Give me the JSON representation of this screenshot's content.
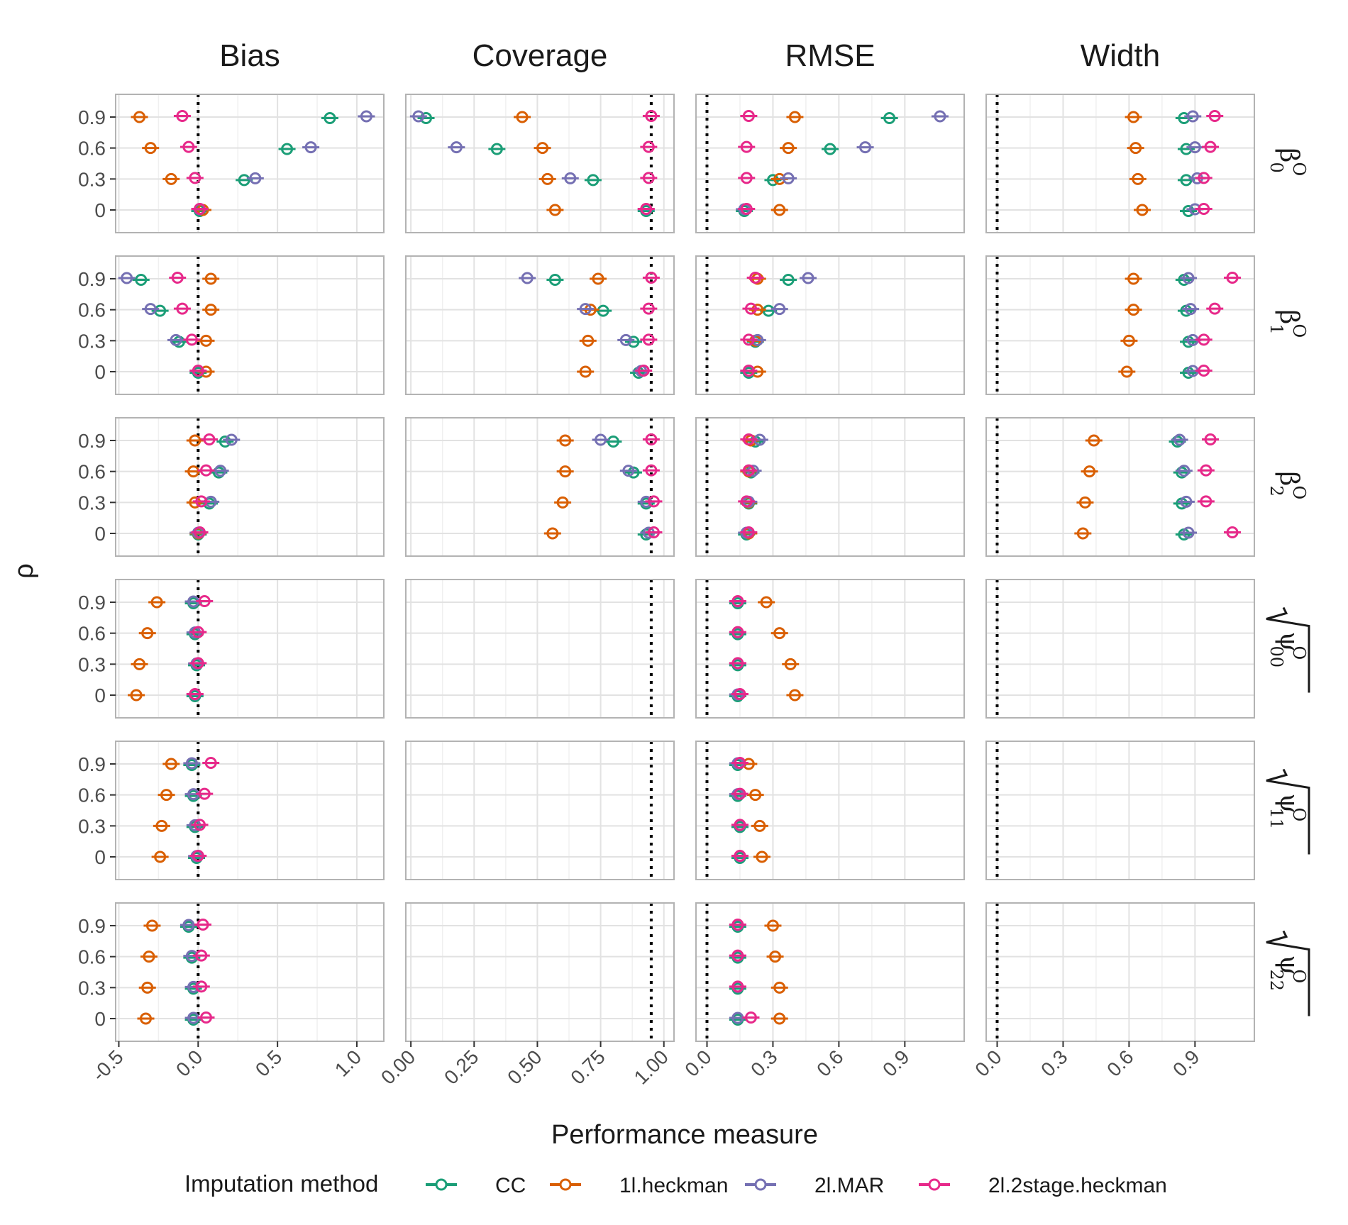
{
  "chart_data": {
    "type": "scatter",
    "title": "",
    "xlabel": "Performance measure",
    "ylabel": "ρ",
    "grid": true,
    "legend_position": "bottom",
    "rho_levels": [
      "0",
      "0.3",
      "0.6",
      "0.9"
    ],
    "columns": [
      {
        "name": "Bias",
        "xlim": [
          -0.52,
          1.17
        ],
        "ticks": [
          -0.5,
          0.0,
          0.5,
          1.0
        ],
        "tick_labels": [
          "-0.5",
          "0.0",
          "0.5",
          "1.0"
        ],
        "reference": 0.0
      },
      {
        "name": "Coverage",
        "xlim": [
          -0.02,
          1.04
        ],
        "ticks": [
          0.0,
          0.25,
          0.5,
          0.75,
          1.0
        ],
        "tick_labels": [
          "0.00",
          "0.25",
          "0.50",
          "0.75",
          "1.00"
        ],
        "reference": 0.95
      },
      {
        "name": "RMSE",
        "xlim": [
          -0.05,
          1.17
        ],
        "ticks": [
          0.0,
          0.3,
          0.6,
          0.9
        ],
        "tick_labels": [
          "0.0",
          "0.3",
          "0.6",
          "0.9"
        ],
        "reference": 0.0
      },
      {
        "name": "Width",
        "xlim": [
          -0.05,
          1.17
        ],
        "ticks": [
          0.0,
          0.3,
          0.6,
          0.9
        ],
        "tick_labels": [
          "0.0",
          "0.3",
          "0.6",
          "0.9"
        ],
        "reference": 0.0
      }
    ],
    "rows": [
      {
        "label": "β",
        "sub": "0",
        "sup": "O",
        "sqrt": false
      },
      {
        "label": "β",
        "sub": "1",
        "sup": "O",
        "sqrt": false
      },
      {
        "label": "β",
        "sub": "2",
        "sup": "O",
        "sqrt": false
      },
      {
        "label": "ψ",
        "sub": "00",
        "sup": "O",
        "sqrt": true
      },
      {
        "label": "ψ",
        "sub": "11",
        "sup": "O",
        "sqrt": true
      },
      {
        "label": "ψ",
        "sub": "22",
        "sup": "O",
        "sqrt": true
      }
    ],
    "legend": {
      "title": "Imputation method",
      "series": [
        {
          "name": "CC",
          "color": "#1b9e77"
        },
        {
          "name": "1l.heckman",
          "color": "#d95f02"
        },
        {
          "name": "2l.MAR",
          "color": "#7570b3"
        },
        {
          "name": "2l.2stage.heckman",
          "color": "#e7298a"
        }
      ]
    },
    "panels": {
      "Bias": [
        {
          "CC": [
            0.01,
            0.29,
            0.56,
            0.83
          ],
          "1l.heckman": [
            0.03,
            -0.17,
            -0.3,
            -0.37
          ],
          "2l.MAR": [
            0.01,
            0.36,
            0.71,
            1.06
          ],
          "2l.2stage.heckman": [
            0.01,
            -0.02,
            -0.06,
            -0.1
          ]
        },
        {
          "CC": [
            0.0,
            -0.12,
            -0.24,
            -0.36
          ],
          "1l.heckman": [
            0.05,
            0.05,
            0.08,
            0.08
          ],
          "2l.MAR": [
            0.0,
            -0.14,
            -0.3,
            -0.45
          ],
          "2l.2stage.heckman": [
            0.0,
            -0.04,
            -0.1,
            -0.13
          ]
        },
        {
          "CC": [
            0.0,
            0.07,
            0.13,
            0.17
          ],
          "1l.heckman": [
            0.0,
            -0.02,
            -0.03,
            -0.02
          ],
          "2l.MAR": [
            0.0,
            0.08,
            0.14,
            0.21
          ],
          "2l.2stage.heckman": [
            0.01,
            0.02,
            0.05,
            0.07
          ]
        },
        {
          "CC": [
            -0.02,
            -0.01,
            -0.02,
            -0.03
          ],
          "1l.heckman": [
            -0.39,
            -0.37,
            -0.32,
            -0.26
          ],
          "2l.MAR": [
            -0.02,
            -0.01,
            -0.02,
            -0.03
          ],
          "2l.2stage.heckman": [
            -0.02,
            0.0,
            0.0,
            0.04
          ]
        },
        {
          "CC": [
            -0.01,
            -0.02,
            -0.03,
            -0.04
          ],
          "1l.heckman": [
            -0.24,
            -0.23,
            -0.2,
            -0.17
          ],
          "2l.MAR": [
            -0.01,
            -0.02,
            -0.03,
            -0.04
          ],
          "2l.2stage.heckman": [
            0.0,
            0.01,
            0.04,
            0.08
          ]
        },
        {
          "CC": [
            -0.03,
            -0.03,
            -0.04,
            -0.06
          ],
          "1l.heckman": [
            -0.33,
            -0.32,
            -0.31,
            -0.29
          ],
          "2l.MAR": [
            -0.03,
            -0.03,
            -0.04,
            -0.06
          ],
          "2l.2stage.heckman": [
            0.05,
            0.02,
            0.02,
            0.03
          ]
        }
      ],
      "Coverage": [
        {
          "CC": [
            0.93,
            0.72,
            0.34,
            0.06
          ],
          "1l.heckman": [
            0.57,
            0.54,
            0.52,
            0.44
          ],
          "2l.MAR": [
            0.93,
            0.63,
            0.18,
            0.03
          ],
          "2l.2stage.heckman": [
            0.93,
            0.94,
            0.94,
            0.95
          ]
        },
        {
          "CC": [
            0.9,
            0.88,
            0.76,
            0.57
          ],
          "1l.heckman": [
            0.69,
            0.7,
            0.71,
            0.74
          ],
          "2l.MAR": [
            0.91,
            0.85,
            0.69,
            0.46
          ],
          "2l.2stage.heckman": [
            0.92,
            0.94,
            0.94,
            0.95
          ]
        },
        {
          "CC": [
            0.93,
            0.93,
            0.88,
            0.8
          ],
          "1l.heckman": [
            0.56,
            0.6,
            0.61,
            0.61
          ],
          "2l.MAR": [
            0.94,
            0.93,
            0.86,
            0.75
          ],
          "2l.2stage.heckman": [
            0.96,
            0.96,
            0.95,
            0.95
          ]
        },
        {},
        {},
        {}
      ],
      "RMSE": [
        {
          "CC": [
            0.17,
            0.3,
            0.56,
            0.83
          ],
          "1l.heckman": [
            0.33,
            0.33,
            0.37,
            0.4
          ],
          "2l.MAR": [
            0.17,
            0.37,
            0.72,
            1.06
          ],
          "2l.2stage.heckman": [
            0.18,
            0.18,
            0.18,
            0.19
          ]
        },
        {
          "CC": [
            0.19,
            0.22,
            0.28,
            0.37
          ],
          "1l.heckman": [
            0.23,
            0.22,
            0.23,
            0.23
          ],
          "2l.MAR": [
            0.19,
            0.23,
            0.33,
            0.46
          ],
          "2l.2stage.heckman": [
            0.19,
            0.19,
            0.2,
            0.22
          ]
        },
        {
          "CC": [
            0.18,
            0.19,
            0.2,
            0.22
          ],
          "1l.heckman": [
            0.19,
            0.19,
            0.19,
            0.2
          ],
          "2l.MAR": [
            0.18,
            0.19,
            0.21,
            0.24
          ],
          "2l.2stage.heckman": [
            0.19,
            0.18,
            0.19,
            0.19
          ]
        },
        {
          "CC": [
            0.14,
            0.14,
            0.14,
            0.14
          ],
          "1l.heckman": [
            0.4,
            0.38,
            0.33,
            0.27
          ],
          "2l.MAR": [
            0.14,
            0.14,
            0.14,
            0.14
          ],
          "2l.2stage.heckman": [
            0.15,
            0.14,
            0.14,
            0.14
          ]
        },
        {
          "CC": [
            0.15,
            0.15,
            0.14,
            0.14
          ],
          "1l.heckman": [
            0.25,
            0.24,
            0.22,
            0.19
          ],
          "2l.MAR": [
            0.15,
            0.15,
            0.14,
            0.14
          ],
          "2l.2stage.heckman": [
            0.15,
            0.15,
            0.15,
            0.15
          ]
        },
        {
          "CC": [
            0.14,
            0.14,
            0.14,
            0.14
          ],
          "1l.heckman": [
            0.33,
            0.33,
            0.31,
            0.3
          ],
          "2l.MAR": [
            0.14,
            0.14,
            0.14,
            0.14
          ],
          "2l.2stage.heckman": [
            0.2,
            0.14,
            0.14,
            0.14
          ]
        }
      ],
      "Width": [
        {
          "CC": [
            0.87,
            0.86,
            0.86,
            0.85
          ],
          "1l.heckman": [
            0.66,
            0.64,
            0.63,
            0.62
          ],
          "2l.MAR": [
            0.9,
            0.91,
            0.9,
            0.89
          ],
          "2l.2stage.heckman": [
            0.94,
            0.94,
            0.97,
            0.99
          ]
        },
        {
          "CC": [
            0.87,
            0.87,
            0.86,
            0.85
          ],
          "1l.heckman": [
            0.59,
            0.6,
            0.62,
            0.62
          ],
          "2l.MAR": [
            0.89,
            0.89,
            0.88,
            0.87
          ],
          "2l.2stage.heckman": [
            0.94,
            0.94,
            0.99,
            1.07
          ]
        },
        {
          "CC": [
            0.85,
            0.84,
            0.84,
            0.82
          ],
          "1l.heckman": [
            0.39,
            0.4,
            0.42,
            0.44
          ],
          "2l.MAR": [
            0.87,
            0.86,
            0.85,
            0.83
          ],
          "2l.2stage.heckman": [
            1.07,
            0.95,
            0.95,
            0.97
          ]
        },
        {},
        {},
        {}
      ]
    }
  }
}
